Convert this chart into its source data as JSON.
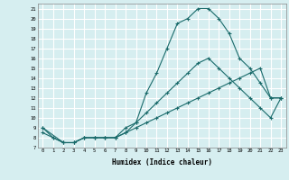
{
  "xlabel": "Humidex (Indice chaleur)",
  "background_color": "#d6eef0",
  "grid_color": "#ffffff",
  "line_color": "#1a6b6b",
  "xlim": [
    -0.5,
    23.5
  ],
  "ylim": [
    7,
    21.5
  ],
  "xticks": [
    0,
    1,
    2,
    3,
    4,
    5,
    6,
    7,
    8,
    9,
    10,
    11,
    12,
    13,
    14,
    15,
    16,
    17,
    18,
    19,
    20,
    21,
    22,
    23
  ],
  "yticks": [
    7,
    8,
    9,
    10,
    11,
    12,
    13,
    14,
    15,
    16,
    17,
    18,
    19,
    20,
    21
  ],
  "line1_x": [
    0,
    1,
    2,
    3,
    4,
    5,
    6,
    7,
    8,
    9,
    10,
    11,
    12,
    13,
    14,
    15,
    16,
    17,
    18,
    19,
    20,
    21,
    22,
    23
  ],
  "line1_y": [
    9,
    8,
    7.5,
    7.5,
    8,
    8,
    8,
    8,
    9,
    9.5,
    12.5,
    14.5,
    17,
    19.5,
    20,
    21,
    21,
    20,
    18.5,
    16,
    15,
    13.5,
    12,
    12
  ],
  "line2_x": [
    0,
    1,
    2,
    3,
    4,
    5,
    6,
    7,
    8,
    9,
    10,
    11,
    12,
    13,
    14,
    15,
    16,
    17,
    18,
    19,
    20,
    21,
    22,
    23
  ],
  "line2_y": [
    8.5,
    8,
    7.5,
    7.5,
    8,
    8,
    8,
    8,
    8.5,
    9,
    9.5,
    10,
    10.5,
    11,
    11.5,
    12,
    12.5,
    13,
    13.5,
    14,
    14.5,
    15,
    12,
    12
  ],
  "line3_x": [
    0,
    2,
    3,
    4,
    5,
    6,
    7,
    8,
    9,
    10,
    11,
    12,
    13,
    14,
    15,
    16,
    17,
    18,
    19,
    20,
    21,
    22,
    23
  ],
  "line3_y": [
    9,
    7.5,
    7.5,
    8,
    8,
    8,
    8,
    8.5,
    9.5,
    10.5,
    11.5,
    12.5,
    13.5,
    14.5,
    15.5,
    16,
    15,
    14,
    13,
    12,
    11,
    10,
    12
  ]
}
